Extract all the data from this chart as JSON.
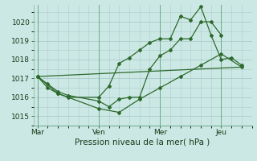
{
  "bg_color": "#cce8e4",
  "grid_color": "#aaccca",
  "line_color": "#2d6a2d",
  "xlabel": "Pression niveau de la mer( hPa )",
  "ylim": [
    1014.5,
    1020.9
  ],
  "yticks": [
    1015,
    1016,
    1017,
    1018,
    1019,
    1020
  ],
  "xtick_labels": [
    "Mar",
    "Ven",
    "Mer",
    "Jeu"
  ],
  "xtick_positions": [
    0,
    3,
    6,
    9
  ],
  "vline_positions": [
    0,
    3,
    6,
    9
  ],
  "xlim": [
    -0.2,
    10.5
  ],
  "series1_x": [
    0,
    0.5,
    1.0,
    1.5,
    3.0,
    3.5,
    4.0,
    4.5,
    5.0,
    5.5,
    6.0,
    6.5,
    7.0,
    7.5,
    8.0,
    8.5,
    9.0
  ],
  "series1_y": [
    1017.1,
    1016.7,
    1016.3,
    1016.1,
    1015.8,
    1015.5,
    1015.9,
    1016.0,
    1016.0,
    1017.5,
    1018.2,
    1018.5,
    1019.1,
    1019.1,
    1020.0,
    1020.0,
    1019.3
  ],
  "series2_x": [
    0,
    0.5,
    1.0,
    1.5,
    3.0,
    3.5,
    4.0,
    4.5,
    5.0,
    5.5,
    6.0,
    6.5,
    7.0,
    7.5,
    8.0,
    8.5,
    9.0,
    9.5,
    10.0
  ],
  "series2_y": [
    1017.1,
    1016.5,
    1016.2,
    1016.0,
    1016.0,
    1016.6,
    1017.8,
    1018.1,
    1018.5,
    1018.9,
    1019.1,
    1019.1,
    1020.3,
    1020.1,
    1020.8,
    1019.3,
    1018.0,
    1018.1,
    1017.7
  ],
  "series3_x": [
    0,
    1.0,
    3.0,
    4.0,
    5.0,
    6.0,
    7.0,
    8.0,
    9.0,
    10.0
  ],
  "series3_y": [
    1017.1,
    1016.2,
    1015.4,
    1015.2,
    1015.9,
    1016.5,
    1017.1,
    1017.7,
    1018.3,
    1017.6
  ],
  "series4_x": [
    0,
    10.0
  ],
  "series4_y": [
    1017.1,
    1017.6
  ]
}
